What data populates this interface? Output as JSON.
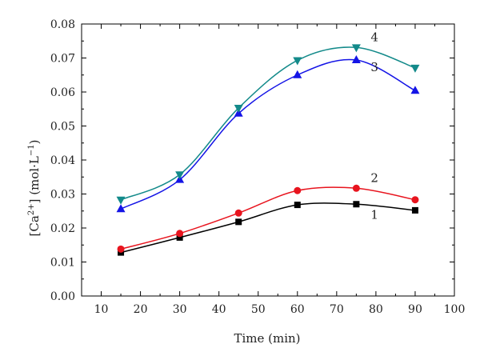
{
  "chart_data": {
    "type": "scatter",
    "xlabel": "Time (min)",
    "ylabel": "[Ca2+] (mol·L−1)",
    "ylabel_parts": {
      "open": "[Ca",
      "sup": "2+",
      "mid": "] (mol·L",
      "sup2": "−1",
      "close": ")"
    },
    "xlim": [
      5,
      100
    ],
    "ylim": [
      0,
      0.08
    ],
    "x_ticks": [
      10,
      20,
      30,
      40,
      50,
      60,
      70,
      80,
      90,
      100
    ],
    "y_ticks": [
      "0.00",
      "0.01",
      "0.02",
      "0.03",
      "0.04",
      "0.05",
      "0.06",
      "0.07",
      "0.08"
    ],
    "grid": false,
    "legend": "none",
    "series": [
      {
        "label": "1",
        "color": "#000000",
        "marker": "square",
        "x": [
          15,
          30,
          45,
          60,
          75,
          90
        ],
        "values": [
          0.0128,
          0.0172,
          0.0218,
          0.0268,
          0.027,
          0.0252
        ]
      },
      {
        "label": "2",
        "color": "#e8141e",
        "marker": "circle",
        "x": [
          15,
          30,
          45,
          60,
          75,
          90
        ],
        "values": [
          0.0138,
          0.0184,
          0.0244,
          0.031,
          0.0317,
          0.0283
        ]
      },
      {
        "label": "3",
        "color": "#1414e6",
        "marker": "triangle-up",
        "x": [
          15,
          30,
          45,
          60,
          75,
          90
        ],
        "values": [
          0.0256,
          0.0342,
          0.0537,
          0.065,
          0.0694,
          0.0604
        ]
      },
      {
        "label": "4",
        "color": "#138a8a",
        "marker": "triangle-down",
        "x": [
          15,
          30,
          45,
          60,
          75,
          90
        ],
        "values": [
          0.0283,
          0.0357,
          0.0553,
          0.0693,
          0.0731,
          0.0671
        ]
      }
    ]
  }
}
